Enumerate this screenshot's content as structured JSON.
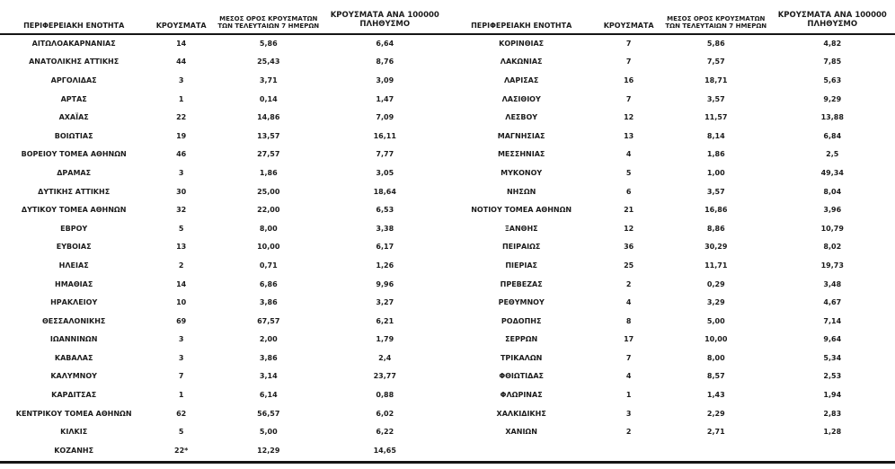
{
  "colors": {
    "background": "#ffffff",
    "text": "#1c1c1c",
    "rule": "#151515"
  },
  "table_headers": {
    "col_region": "ΠΕΡΙΦΕΡΕΙΑΚΗ ΕΝΟΤΗΤΑ",
    "col_cases": "ΚΡΟΥΣΜΑΤΑ",
    "col_avg7_line1": "ΜΕΣΟΣ ΟΡΟΣ ΚΡΟΥΣΜΑΤΩΝ",
    "col_avg7_line2": "ΤΩΝ ΤΕΛΕΥΤΑΙΩΝ 7 ΗΜΕΡΩΝ",
    "col_per100k_line1": "ΚΡΟΥΣΜΑΤΑ ΑΝΑ 100000",
    "col_per100k_line2": "ΠΛΗΘΥΣΜΟ"
  },
  "left_table": {
    "rows": [
      {
        "region": "ΑΙΤΩΛΟΑΚΑΡΝΑΝΙΑΣ",
        "cases": "14",
        "avg7": "5,86",
        "per100k": "6,64"
      },
      {
        "region": "ΑΝΑΤΟΛΙΚΗΣ ΑΤΤΙΚΗΣ",
        "cases": "44",
        "avg7": "25,43",
        "per100k": "8,76"
      },
      {
        "region": "ΑΡΓΟΛΙΔΑΣ",
        "cases": "3",
        "avg7": "3,71",
        "per100k": "3,09"
      },
      {
        "region": "ΑΡΤΑΣ",
        "cases": "1",
        "avg7": "0,14",
        "per100k": "1,47"
      },
      {
        "region": "ΑΧΑΪΑΣ",
        "cases": "22",
        "avg7": "14,86",
        "per100k": "7,09"
      },
      {
        "region": "ΒΟΙΩΤΙΑΣ",
        "cases": "19",
        "avg7": "13,57",
        "per100k": "16,11"
      },
      {
        "region": "ΒΟΡΕΙΟΥ ΤΟΜΕΑ ΑΘΗΝΩΝ",
        "cases": "46",
        "avg7": "27,57",
        "per100k": "7,77"
      },
      {
        "region": "ΔΡΑΜΑΣ",
        "cases": "3",
        "avg7": "1,86",
        "per100k": "3,05"
      },
      {
        "region": "ΔΥΤΙΚΗΣ ΑΤΤΙΚΗΣ",
        "cases": "30",
        "avg7": "25,00",
        "per100k": "18,64"
      },
      {
        "region": "ΔΥΤΙΚΟΥ ΤΟΜΕΑ ΑΘΗΝΩΝ",
        "cases": "32",
        "avg7": "22,00",
        "per100k": "6,53"
      },
      {
        "region": "ΕΒΡΟΥ",
        "cases": "5",
        "avg7": "8,00",
        "per100k": "3,38"
      },
      {
        "region": "ΕΥΒΟΙΑΣ",
        "cases": "13",
        "avg7": "10,00",
        "per100k": "6,17"
      },
      {
        "region": "ΗΛΕΙΑΣ",
        "cases": "2",
        "avg7": "0,71",
        "per100k": "1,26"
      },
      {
        "region": "ΗΜΑΘΙΑΣ",
        "cases": "14",
        "avg7": "6,86",
        "per100k": "9,96"
      },
      {
        "region": "ΗΡΑΚΛΕΙΟΥ",
        "cases": "10",
        "avg7": "3,86",
        "per100k": "3,27"
      },
      {
        "region": "ΘΕΣΣΑΛΟΝΙΚΗΣ",
        "cases": "69",
        "avg7": "67,57",
        "per100k": "6,21"
      },
      {
        "region": "ΙΩΑΝΝΙΝΩΝ",
        "cases": "3",
        "avg7": "2,00",
        "per100k": "1,79"
      },
      {
        "region": "ΚΑΒΑΛΑΣ",
        "cases": "3",
        "avg7": "3,86",
        "per100k": "2,4"
      },
      {
        "region": "ΚΑΛΥΜΝΟΥ",
        "cases": "7",
        "avg7": "3,14",
        "per100k": "23,77"
      },
      {
        "region": "ΚΑΡΔΙΤΣΑΣ",
        "cases": "1",
        "avg7": "6,14",
        "per100k": "0,88"
      },
      {
        "region": "ΚΕΝΤΡΙΚΟΥ ΤΟΜΕΑ ΑΘΗΝΩΝ",
        "cases": "62",
        "avg7": "56,57",
        "per100k": "6,02"
      },
      {
        "region": "ΚΙΛΚΙΣ",
        "cases": "5",
        "avg7": "5,00",
        "per100k": "6,22"
      },
      {
        "region": "ΚΟΖΑΝΗΣ",
        "cases": "22*",
        "avg7": "12,29",
        "per100k": "14,65"
      }
    ]
  },
  "right_table": {
    "rows": [
      {
        "region": "ΚΟΡΙΝΘΙΑΣ",
        "cases": "7",
        "avg7": "5,86",
        "per100k": "4,82"
      },
      {
        "region": "ΛΑΚΩΝΙΑΣ",
        "cases": "7",
        "avg7": "7,57",
        "per100k": "7,85"
      },
      {
        "region": "ΛΑΡΙΣΑΣ",
        "cases": "16",
        "avg7": "18,71",
        "per100k": "5,63"
      },
      {
        "region": "ΛΑΣΙΘΙΟΥ",
        "cases": "7",
        "avg7": "3,57",
        "per100k": "9,29"
      },
      {
        "region": "ΛΕΣΒΟΥ",
        "cases": "12",
        "avg7": "11,57",
        "per100k": "13,88"
      },
      {
        "region": "ΜΑΓΝΗΣΙΑΣ",
        "cases": "13",
        "avg7": "8,14",
        "per100k": "6,84"
      },
      {
        "region": "ΜΕΣΣΗΝΙΑΣ",
        "cases": "4",
        "avg7": "1,86",
        "per100k": "2,5"
      },
      {
        "region": "ΜΥΚΟΝΟΥ",
        "cases": "5",
        "avg7": "1,00",
        "per100k": "49,34"
      },
      {
        "region": "ΝΗΣΩΝ",
        "cases": "6",
        "avg7": "3,57",
        "per100k": "8,04"
      },
      {
        "region": "ΝΟΤΙΟΥ ΤΟΜΕΑ ΑΘΗΝΩΝ",
        "cases": "21",
        "avg7": "16,86",
        "per100k": "3,96"
      },
      {
        "region": "ΞΑΝΘΗΣ",
        "cases": "12",
        "avg7": "8,86",
        "per100k": "10,79"
      },
      {
        "region": "ΠΕΙΡΑΙΩΣ",
        "cases": "36",
        "avg7": "30,29",
        "per100k": "8,02"
      },
      {
        "region": "ΠΙΕΡΙΑΣ",
        "cases": "25",
        "avg7": "11,71",
        "per100k": "19,73"
      },
      {
        "region": "ΠΡΕΒΕΖΑΣ",
        "cases": "2",
        "avg7": "0,29",
        "per100k": "3,48"
      },
      {
        "region": "ΡΕΘΥΜΝΟΥ",
        "cases": "4",
        "avg7": "3,29",
        "per100k": "4,67"
      },
      {
        "region": "ΡΟΔΟΠΗΣ",
        "cases": "8",
        "avg7": "5,00",
        "per100k": "7,14"
      },
      {
        "region": "ΣΕΡΡΩΝ",
        "cases": "17",
        "avg7": "10,00",
        "per100k": "9,64"
      },
      {
        "region": "ΤΡΙΚΑΛΩΝ",
        "cases": "7",
        "avg7": "8,00",
        "per100k": "5,34"
      },
      {
        "region": "ΦΘΙΩΤΙΔΑΣ",
        "cases": "4",
        "avg7": "8,57",
        "per100k": "2,53"
      },
      {
        "region": "ΦΛΩΡΙΝΑΣ",
        "cases": "1",
        "avg7": "1,43",
        "per100k": "1,94"
      },
      {
        "region": "ΧΑΛΚΙΔΙΚΗΣ",
        "cases": "3",
        "avg7": "2,29",
        "per100k": "2,83"
      },
      {
        "region": "ΧΑΝΙΩΝ",
        "cases": "2",
        "avg7": "2,71",
        "per100k": "1,28"
      }
    ]
  }
}
